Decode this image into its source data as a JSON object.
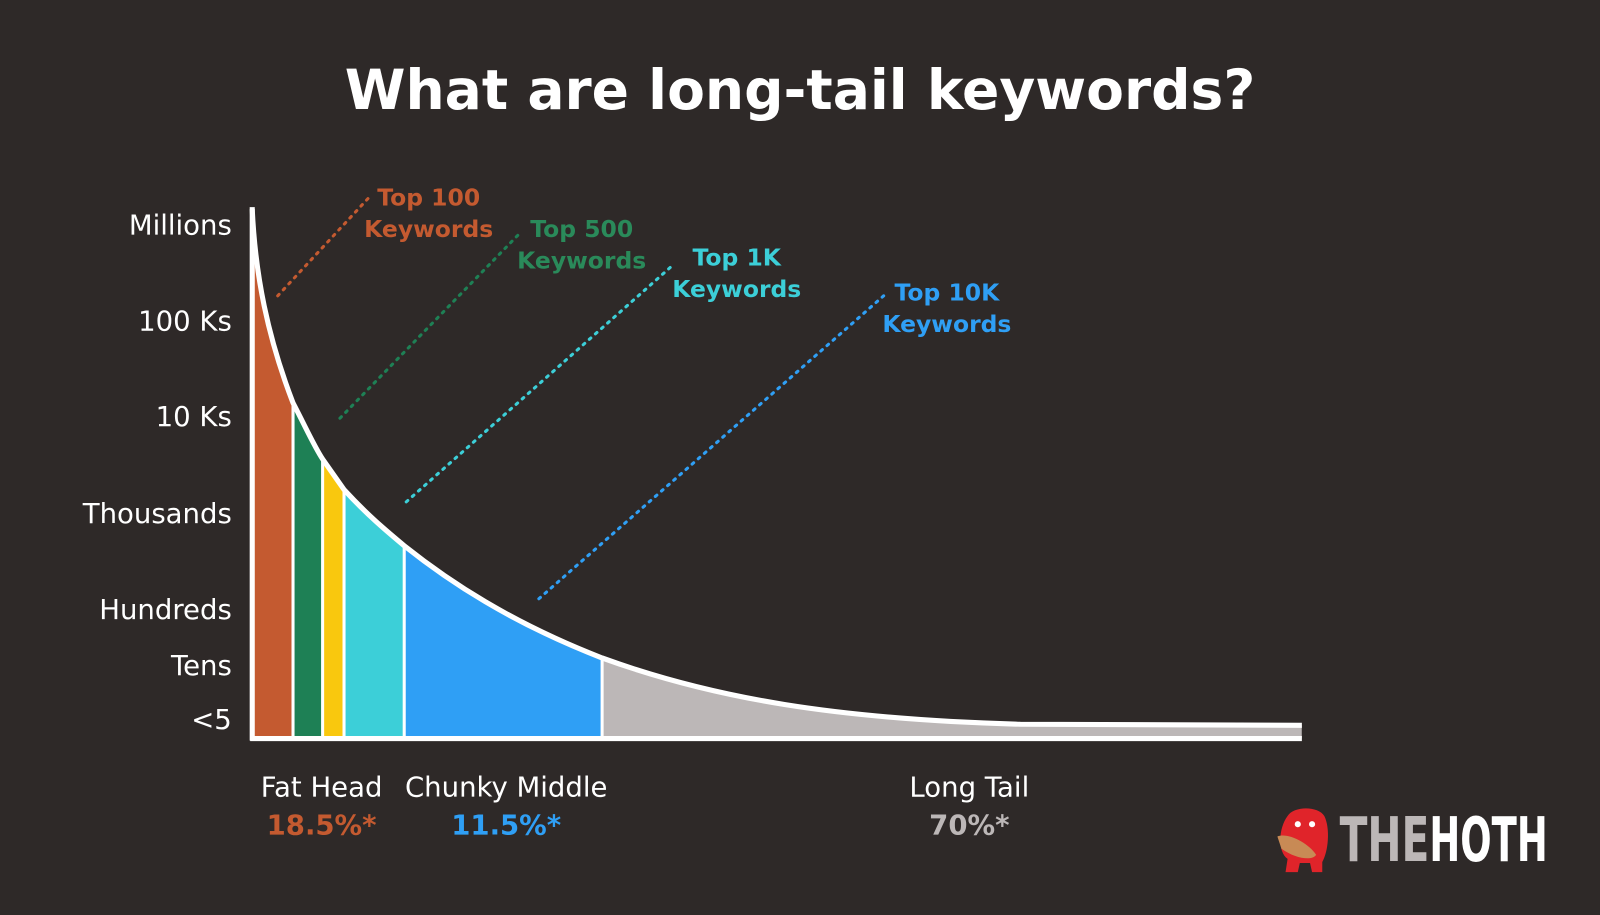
{
  "title": "What are long-tail keywords?",
  "y_axis": {
    "labels": [
      "Millions",
      "100 Ks",
      "10 Ks",
      "Thousands",
      "Hundreds",
      "Tens",
      "<5"
    ]
  },
  "annotations": [
    {
      "line1": "Top 100",
      "line2": "Keywords"
    },
    {
      "line1": "Top 500",
      "line2": "Keywords"
    },
    {
      "line1": "Top 1K",
      "line2": "Keywords"
    },
    {
      "line1": "Top 10K",
      "line2": "Keywords"
    }
  ],
  "segments": [
    {
      "label": "Fat Head",
      "share": "18.5%*"
    },
    {
      "label": "Chunky Middle",
      "share": "11.5%*"
    },
    {
      "label": "Long Tail",
      "share": "70%*"
    }
  ],
  "logo": {
    "part1": "THE",
    "part2": "HOTH"
  }
}
